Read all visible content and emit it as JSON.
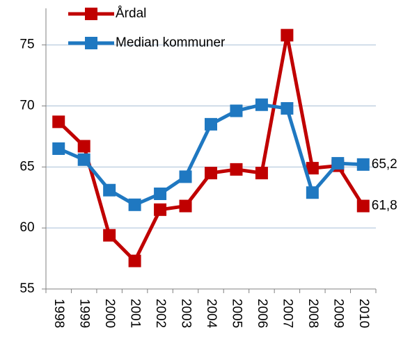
{
  "chart_data": {
    "type": "line",
    "categories": [
      "1998",
      "1999",
      "2000",
      "2001",
      "2002",
      "2003",
      "2004",
      "2005",
      "2006",
      "2007",
      "2008",
      "2009",
      "2010"
    ],
    "series": [
      {
        "name": "Årdal",
        "color": "#c00000",
        "values": [
          68.7,
          66.7,
          59.4,
          57.3,
          61.5,
          61.8,
          64.5,
          64.8,
          64.5,
          75.8,
          64.9,
          65.1,
          61.8
        ],
        "value_labels": [
          null,
          null,
          null,
          null,
          null,
          null,
          null,
          null,
          null,
          null,
          null,
          null,
          "61,8"
        ]
      },
      {
        "name": "Median kommuner",
        "color": "#1f78c1",
        "values": [
          66.5,
          65.6,
          63.1,
          61.9,
          62.8,
          64.2,
          68.5,
          69.6,
          70.1,
          69.8,
          62.9,
          65.3,
          65.2
        ],
        "value_labels": [
          null,
          null,
          null,
          null,
          null,
          null,
          null,
          null,
          null,
          null,
          null,
          null,
          "65,2"
        ]
      }
    ],
    "ylim": [
      55,
      78
    ],
    "yticks": [
      55,
      60,
      65,
      70,
      75
    ],
    "grid": true,
    "legend": "top-left"
  }
}
